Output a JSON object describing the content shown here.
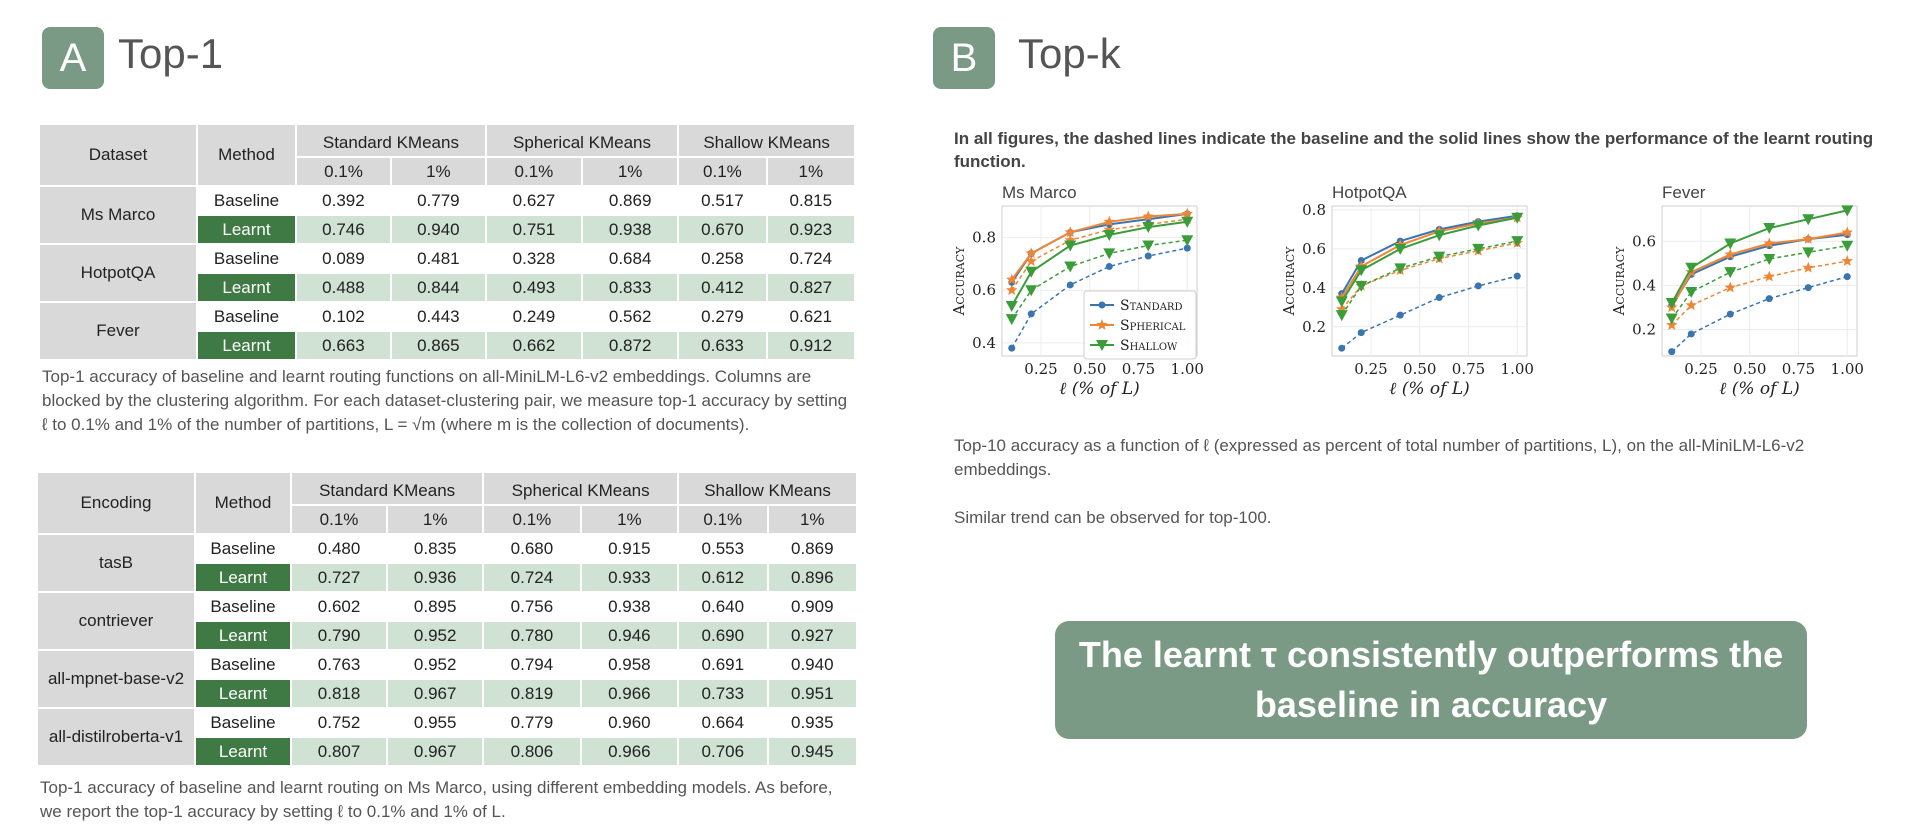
{
  "panel_a": {
    "badge": "A",
    "title": "Top-1",
    "table1": {
      "headers": {
        "first": "Dataset",
        "method": "Method",
        "groups": [
          "Standard KMeans",
          "Spherical KMeans",
          "Shallow KMeans"
        ],
        "sub": [
          "0.1%",
          "1%"
        ]
      },
      "rows": [
        {
          "name": "Ms Marco",
          "baseline": [
            "0.392",
            "0.779",
            "0.627",
            "0.869",
            "0.517",
            "0.815"
          ],
          "learnt": [
            "0.746",
            "0.940",
            "0.751",
            "0.938",
            "0.670",
            "0.923"
          ]
        },
        {
          "name": "HotpotQA",
          "baseline": [
            "0.089",
            "0.481",
            "0.328",
            "0.684",
            "0.258",
            "0.724"
          ],
          "learnt": [
            "0.488",
            "0.844",
            "0.493",
            "0.833",
            "0.412",
            "0.827"
          ]
        },
        {
          "name": "Fever",
          "baseline": [
            "0.102",
            "0.443",
            "0.249",
            "0.562",
            "0.279",
            "0.621"
          ],
          "learnt": [
            "0.663",
            "0.865",
            "0.662",
            "0.872",
            "0.633",
            "0.912"
          ]
        }
      ],
      "baseline_label": "Baseline",
      "learnt_label": "Learnt"
    },
    "caption1": "Top-1 accuracy of baseline and learnt routing functions on all-MiniLM-L6-v2 embeddings. Columns are blocked by the clustering algorithm. For each dataset-clustering pair, we measure top-1 accuracy by setting ℓ to 0.1% and 1% of the number of partitions, L = √m (where m is the collection of documents).",
    "table2": {
      "headers": {
        "first": "Encoding",
        "method": "Method",
        "groups": [
          "Standard KMeans",
          "Spherical KMeans",
          "Shallow KMeans"
        ],
        "sub": [
          "0.1%",
          "1%"
        ]
      },
      "rows": [
        {
          "name": "tasB",
          "baseline": [
            "0.480",
            "0.835",
            "0.680",
            "0.915",
            "0.553",
            "0.869"
          ],
          "learnt": [
            "0.727",
            "0.936",
            "0.724",
            "0.933",
            "0.612",
            "0.896"
          ]
        },
        {
          "name": "contriever",
          "baseline": [
            "0.602",
            "0.895",
            "0.756",
            "0.938",
            "0.640",
            "0.909"
          ],
          "learnt": [
            "0.790",
            "0.952",
            "0.780",
            "0.946",
            "0.690",
            "0.927"
          ]
        },
        {
          "name": "all-mpnet-base-v2",
          "baseline": [
            "0.763",
            "0.952",
            "0.794",
            "0.958",
            "0.691",
            "0.940"
          ],
          "learnt": [
            "0.818",
            "0.967",
            "0.819",
            "0.966",
            "0.733",
            "0.951"
          ]
        },
        {
          "name": "all-distilroberta-v1",
          "baseline": [
            "0.752",
            "0.955",
            "0.779",
            "0.960",
            "0.664",
            "0.935"
          ],
          "learnt": [
            "0.807",
            "0.967",
            "0.806",
            "0.966",
            "0.706",
            "0.945"
          ]
        }
      ],
      "baseline_label": "Baseline",
      "learnt_label": "Learnt"
    },
    "caption2": "Top-1 accuracy of baseline and learnt routing on Ms Marco, using different embedding models. As before, we report the top-1 accuracy by setting ℓ to 0.1% and 1% of L."
  },
  "panel_b": {
    "badge": "B",
    "title": "Top-k",
    "note": "In all figures, the dashed lines indicate the baseline and the solid lines show the performance of the learnt routing function.",
    "caption": "Top-10 accuracy as a function of ℓ (expressed as percent of total number of partitions, L), on the all-MiniLM-L6-v2 embeddings.",
    "caption_extra": "Similar trend can be observed for top-100.",
    "conclusion_line1": "The learnt τ consistently outperforms the",
    "conclusion_line2": "baseline in accuracy"
  },
  "chart_data": [
    {
      "type": "line",
      "title": "Ms Marco",
      "xlabel": "ℓ (% of L)",
      "ylabel": "Accuracy",
      "x": [
        0.1,
        0.2,
        0.4,
        0.6,
        0.8,
        1.0
      ],
      "xticks": [
        "0.25",
        "0.50",
        "0.75",
        "1.00"
      ],
      "yticks": [
        "0.4",
        "0.6",
        "0.8"
      ],
      "xlim": [
        0.05,
        1.05
      ],
      "ylim": [
        0.35,
        0.92
      ],
      "legend": [
        "Standard",
        "Spherical",
        "Shallow"
      ],
      "legend_position": "lower-right",
      "series": [
        {
          "name": "Standard",
          "style": "solid",
          "color": "#3b75af",
          "values": [
            0.63,
            0.74,
            0.82,
            0.85,
            0.87,
            0.89
          ]
        },
        {
          "name": "Standard",
          "style": "dashed",
          "color": "#3b75af",
          "values": [
            0.38,
            0.51,
            0.62,
            0.69,
            0.73,
            0.76
          ]
        },
        {
          "name": "Spherical",
          "style": "solid",
          "color": "#ef8636",
          "values": [
            0.64,
            0.74,
            0.82,
            0.86,
            0.88,
            0.89
          ]
        },
        {
          "name": "Spherical",
          "style": "dashed",
          "color": "#ef8636",
          "values": [
            0.6,
            0.71,
            0.79,
            0.83,
            0.85,
            0.87
          ]
        },
        {
          "name": "Shallow",
          "style": "solid",
          "color": "#3b9d3a",
          "values": [
            0.54,
            0.67,
            0.77,
            0.81,
            0.84,
            0.86
          ]
        },
        {
          "name": "Shallow",
          "style": "dashed",
          "color": "#3b9d3a",
          "values": [
            0.49,
            0.6,
            0.69,
            0.74,
            0.77,
            0.79
          ]
        }
      ]
    },
    {
      "type": "line",
      "title": "HotpotQA",
      "xlabel": "ℓ (% of L)",
      "ylabel": "Accuracy",
      "x": [
        0.1,
        0.2,
        0.4,
        0.6,
        0.8,
        1.0
      ],
      "xticks": [
        "0.25",
        "0.50",
        "0.75",
        "1.00"
      ],
      "yticks": [
        "0.2",
        "0.4",
        "0.6",
        "0.8"
      ],
      "xlim": [
        0.05,
        1.05
      ],
      "ylim": [
        0.05,
        0.82
      ],
      "series": [
        {
          "name": "Standard",
          "style": "solid",
          "color": "#3b75af",
          "values": [
            0.37,
            0.54,
            0.64,
            0.7,
            0.74,
            0.77
          ]
        },
        {
          "name": "Standard",
          "style": "dashed",
          "color": "#3b75af",
          "values": [
            0.09,
            0.17,
            0.26,
            0.35,
            0.41,
            0.46
          ]
        },
        {
          "name": "Spherical",
          "style": "solid",
          "color": "#ef8636",
          "values": [
            0.35,
            0.51,
            0.62,
            0.69,
            0.73,
            0.76
          ]
        },
        {
          "name": "Spherical",
          "style": "dashed",
          "color": "#ef8636",
          "values": [
            0.29,
            0.41,
            0.49,
            0.55,
            0.59,
            0.63
          ]
        },
        {
          "name": "Shallow",
          "style": "solid",
          "color": "#3b9d3a",
          "values": [
            0.33,
            0.49,
            0.6,
            0.67,
            0.72,
            0.76
          ]
        },
        {
          "name": "Shallow",
          "style": "dashed",
          "color": "#3b9d3a",
          "values": [
            0.26,
            0.41,
            0.5,
            0.56,
            0.6,
            0.64
          ]
        }
      ]
    },
    {
      "type": "line",
      "title": "Fever",
      "xlabel": "ℓ (% of L)",
      "ylabel": "Accuracy",
      "x": [
        0.1,
        0.2,
        0.4,
        0.6,
        0.8,
        1.0
      ],
      "xticks": [
        "0.25",
        "0.50",
        "0.75",
        "1.00"
      ],
      "yticks": [
        "0.2",
        "0.4",
        "0.6"
      ],
      "xlim": [
        0.05,
        1.05
      ],
      "ylim": [
        0.08,
        0.76
      ],
      "series": [
        {
          "name": "Standard",
          "style": "solid",
          "color": "#3b75af",
          "values": [
            0.31,
            0.45,
            0.53,
            0.58,
            0.61,
            0.63
          ]
        },
        {
          "name": "Standard",
          "style": "dashed",
          "color": "#3b75af",
          "values": [
            0.1,
            0.18,
            0.27,
            0.34,
            0.39,
            0.44
          ]
        },
        {
          "name": "Spherical",
          "style": "solid",
          "color": "#ef8636",
          "values": [
            0.3,
            0.46,
            0.54,
            0.59,
            0.61,
            0.64
          ]
        },
        {
          "name": "Spherical",
          "style": "dashed",
          "color": "#ef8636",
          "values": [
            0.22,
            0.31,
            0.39,
            0.44,
            0.48,
            0.51
          ]
        },
        {
          "name": "Shallow",
          "style": "solid",
          "color": "#3b9d3a",
          "values": [
            0.32,
            0.48,
            0.59,
            0.66,
            0.7,
            0.74
          ]
        },
        {
          "name": "Shallow",
          "style": "dashed",
          "color": "#3b9d3a",
          "values": [
            0.25,
            0.37,
            0.46,
            0.52,
            0.55,
            0.58
          ]
        }
      ]
    }
  ]
}
